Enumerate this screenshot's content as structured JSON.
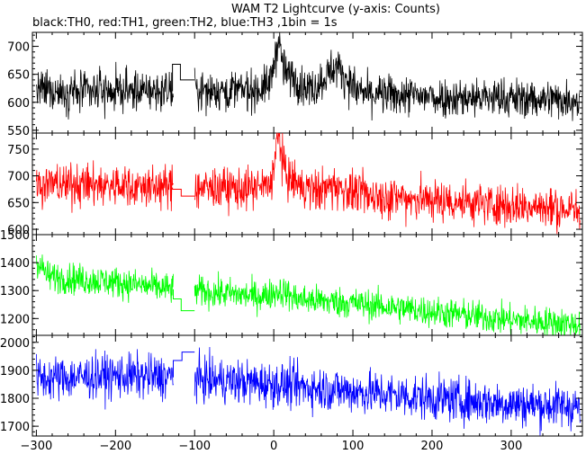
{
  "chart_data": {
    "type": "line",
    "title": "WAM T2 Lightcurve (y-axis: Counts)",
    "subtitle": "black:TH0, red:TH1, green:TH2, blue:TH3 ,1bin = 1s",
    "x_range": [
      -305,
      390
    ],
    "x_ticks": [
      -300,
      -200,
      -100,
      0,
      100,
      200,
      300
    ],
    "gap": [
      -127,
      -100
    ],
    "panels": [
      {
        "name": "TH0",
        "color": "#000000",
        "ylim": [
          545,
          725
        ],
        "y_ticks": [
          550,
          600,
          650,
          700
        ],
        "baseline": [
          [
            -300,
            620
          ],
          [
            -200,
            620
          ],
          [
            -128,
            620
          ],
          [
            0,
            622
          ],
          [
            100,
            615
          ],
          [
            200,
            610
          ],
          [
            300,
            607
          ],
          [
            385,
            605
          ]
        ],
        "noise": 18,
        "gap_steps": [
          [
            -128,
            668
          ],
          [
            -118,
            640
          ],
          [
            -100,
            640
          ]
        ],
        "features": [
          {
            "type": "spike",
            "center": 5,
            "width": 4,
            "amp": 70
          },
          {
            "type": "bump",
            "center": 15,
            "width": 15,
            "amp": 28
          },
          {
            "type": "bump",
            "center": 78,
            "width": 14,
            "amp": 45
          }
        ]
      },
      {
        "name": "TH1",
        "color": "#ff0000",
        "ylim": [
          590,
          780
        ],
        "y_ticks": [
          600,
          650,
          700,
          750
        ],
        "baseline": [
          [
            -300,
            685
          ],
          [
            -200,
            682
          ],
          [
            -128,
            678
          ],
          [
            0,
            675
          ],
          [
            100,
            665
          ],
          [
            200,
            655
          ],
          [
            300,
            645
          ],
          [
            385,
            635
          ]
        ],
        "noise": 20,
        "gap_steps": [
          [
            -128,
            675
          ],
          [
            -117,
            662
          ],
          [
            -100,
            662
          ]
        ],
        "features": [
          {
            "type": "spike",
            "center": 6,
            "width": 4,
            "amp": 80
          },
          {
            "type": "bump",
            "center": 14,
            "width": 14,
            "amp": 22
          },
          {
            "type": "bump",
            "center": 78,
            "width": 14,
            "amp": 12
          }
        ]
      },
      {
        "name": "TH2",
        "color": "#00ff00",
        "ylim": [
          1140,
          1500
        ],
        "y_ticks": [
          1200,
          1300,
          1400,
          1500
        ],
        "baseline": [
          [
            -305,
            1430
          ],
          [
            -285,
            1350
          ],
          [
            -200,
            1330
          ],
          [
            -128,
            1305
          ],
          [
            0,
            1275
          ],
          [
            100,
            1255
          ],
          [
            200,
            1225
          ],
          [
            300,
            1195
          ],
          [
            385,
            1180
          ]
        ],
        "noise": 28,
        "gap_steps": [
          [
            -127,
            1270
          ],
          [
            -117,
            1228
          ],
          [
            -100,
            1228
          ]
        ],
        "features": [
          {
            "type": "bump",
            "center": 8,
            "width": 10,
            "amp": 25
          }
        ]
      },
      {
        "name": "TH3",
        "color": "#0000ff",
        "ylim": [
          1665,
          2025
        ],
        "y_ticks": [
          1700,
          1800,
          1900,
          2000
        ],
        "baseline": [
          [
            -300,
            1870
          ],
          [
            -200,
            1880
          ],
          [
            -128,
            1875
          ],
          [
            0,
            1850
          ],
          [
            100,
            1825
          ],
          [
            200,
            1800
          ],
          [
            300,
            1780
          ],
          [
            385,
            1770
          ]
        ],
        "noise": 40,
        "gap_steps": [
          [
            -127,
            1935
          ],
          [
            -116,
            1965
          ],
          [
            -100,
            1965
          ]
        ],
        "features": []
      }
    ]
  }
}
